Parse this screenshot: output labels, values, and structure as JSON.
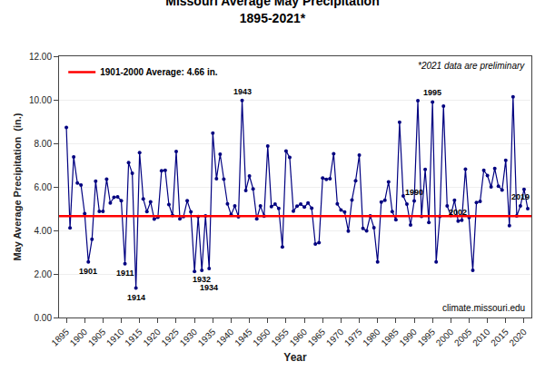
{
  "chart_data": {
    "type": "line",
    "title": "Missouri Average May Precipitation",
    "subtitle": "1895-2021*",
    "x_label": "Year",
    "y_label": "May Average Precipitation  (in.)",
    "x": [
      1895,
      1896,
      1897,
      1898,
      1899,
      1900,
      1901,
      1902,
      1903,
      1904,
      1905,
      1906,
      1907,
      1908,
      1909,
      1910,
      1911,
      1912,
      1913,
      1914,
      1915,
      1916,
      1917,
      1918,
      1919,
      1920,
      1921,
      1922,
      1923,
      1924,
      1925,
      1926,
      1927,
      1928,
      1929,
      1930,
      1931,
      1932,
      1933,
      1934,
      1935,
      1936,
      1937,
      1938,
      1939,
      1940,
      1941,
      1942,
      1943,
      1944,
      1945,
      1946,
      1947,
      1948,
      1949,
      1950,
      1951,
      1952,
      1953,
      1954,
      1955,
      1956,
      1957,
      1958,
      1959,
      1960,
      1961,
      1962,
      1963,
      1964,
      1965,
      1966,
      1967,
      1968,
      1969,
      1970,
      1971,
      1972,
      1973,
      1974,
      1975,
      1976,
      1977,
      1978,
      1979,
      1980,
      1981,
      1982,
      1983,
      1984,
      1985,
      1986,
      1987,
      1988,
      1989,
      1990,
      1991,
      1992,
      1993,
      1994,
      1995,
      1996,
      1997,
      1998,
      1999,
      2000,
      2001,
      2002,
      2003,
      2004,
      2005,
      2006,
      2007,
      2008,
      2009,
      2010,
      2011,
      2012,
      2013,
      2014,
      2015,
      2016,
      2017,
      2018,
      2019,
      2020,
      2021
    ],
    "values": [
      8.73,
      4.11,
      7.37,
      6.18,
      6.08,
      4.77,
      2.55,
      3.59,
      6.26,
      4.87,
      4.87,
      6.35,
      5.26,
      5.52,
      5.54,
      5.36,
      2.47,
      7.11,
      6.63,
      1.35,
      7.57,
      5.45,
      4.86,
      5.31,
      4.52,
      4.6,
      6.74,
      6.76,
      5.19,
      4.69,
      7.62,
      4.53,
      4.64,
      5.36,
      4.85,
      2.11,
      4.64,
      2.17,
      4.67,
      2.25,
      8.47,
      6.37,
      7.5,
      6.35,
      5.22,
      4.72,
      5.12,
      4.63,
      9.97,
      5.83,
      6.5,
      5.91,
      4.53,
      5.12,
      4.66,
      7.87,
      5.09,
      5.21,
      5.01,
      3.24,
      7.65,
      7.35,
      4.89,
      5.11,
      5.21,
      5.07,
      5.26,
      5.02,
      3.37,
      3.44,
      6.41,
      6.34,
      6.38,
      7.52,
      5.22,
      4.94,
      4.84,
      3.97,
      5.4,
      6.28,
      7.46,
      4.09,
      3.98,
      4.67,
      4.13,
      2.55,
      5.3,
      5.39,
      6.23,
      4.86,
      4.49,
      8.97,
      5.58,
      5.21,
      4.25,
      5.35,
      9.96,
      4.65,
      6.8,
      4.36,
      9.9,
      2.55,
      4.65,
      9.71,
      5.12,
      4.69,
      5.39,
      4.43,
      4.47,
      6.81,
      4.59,
      2.17,
      5.28,
      5.33,
      6.76,
      6.52,
      6.0,
      6.84,
      6.03,
      5.85,
      7.22,
      4.22,
      10.14,
      4.67,
      5.12,
      5.89,
      5.0
    ],
    "color": "#000080",
    "marker": "circle",
    "line_style": "solid",
    "average": {
      "value": 4.66,
      "label": "1901-2000 Average: 4.66 in.",
      "color": "#ff0000"
    },
    "xlim": [
      1893,
      2022
    ],
    "xticks": [
      1895,
      1900,
      1905,
      1910,
      1915,
      1920,
      1925,
      1930,
      1935,
      1940,
      1945,
      1950,
      1955,
      1960,
      1965,
      1970,
      1975,
      1980,
      1985,
      1990,
      1995,
      2000,
      2005,
      2010,
      2015,
      2020
    ],
    "ylim": [
      0.0,
      12.0
    ],
    "yticks": [
      {
        "value": 0.0,
        "label": "0.00"
      },
      {
        "value": 2.0,
        "label": "2.00"
      },
      {
        "value": 4.0,
        "label": "4.00"
      },
      {
        "value": 6.0,
        "label": "6.00"
      },
      {
        "value": 8.0,
        "label": "8.00"
      },
      {
        "value": 10.0,
        "label": "10.00"
      },
      {
        "value": 12.0,
        "label": "12.00"
      }
    ],
    "grid": true,
    "annotations": [
      {
        "x": 1901,
        "text": "1901",
        "position": "below"
      },
      {
        "x": 1911,
        "text": "1911",
        "position": "below"
      },
      {
        "x": 1914,
        "text": "1914",
        "position": "below"
      },
      {
        "x": 1932,
        "text": "1932",
        "position": "below"
      },
      {
        "x": 1934,
        "text": "1934",
        "position": "below"
      },
      {
        "x": 1943,
        "text": "1943",
        "position": "above"
      },
      {
        "x": 1990,
        "text": "1990",
        "position": "above"
      },
      {
        "x": 1995,
        "text": "1995",
        "position": "above"
      },
      {
        "x": 2002,
        "text": "2002",
        "position": "above"
      },
      {
        "x": 2019,
        "text": "2019",
        "position": "above"
      },
      {
        "text": "*2021 data are preliminary",
        "position": "top right"
      },
      {
        "text": "climate.missouri.edu",
        "position": "bottom right"
      }
    ]
  }
}
